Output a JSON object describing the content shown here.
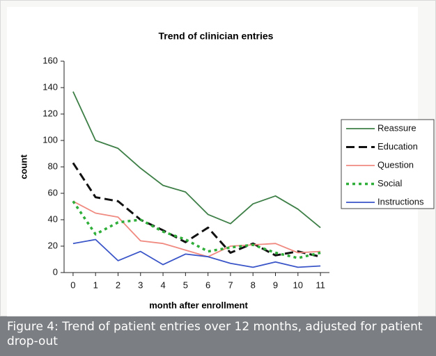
{
  "chart_data": {
    "type": "line",
    "title": "Trend of clinician entries",
    "x_label": "month after enrollment",
    "y_label": "count",
    "x": [
      0,
      1,
      2,
      3,
      4,
      5,
      6,
      7,
      8,
      9,
      10,
      11
    ],
    "xlim": [
      -0.4,
      11.4
    ],
    "xticks": [
      0,
      1,
      2,
      3,
      4,
      5,
      6,
      7,
      8,
      9,
      10,
      11
    ],
    "ylim": [
      0,
      160
    ],
    "yticks": [
      0,
      20,
      40,
      60,
      80,
      100,
      120,
      140,
      160
    ],
    "grid": false,
    "legend": "right",
    "series": [
      {
        "name": "Reassure",
        "color": "#3d7f46",
        "style": "solid",
        "values": [
          137,
          100,
          94,
          79,
          66,
          61,
          44,
          37,
          52,
          58,
          48,
          34
        ]
      },
      {
        "name": "Education",
        "color": "#111111",
        "style": "dashed",
        "values": [
          83,
          57,
          54,
          40,
          32,
          23,
          34,
          15,
          22,
          13,
          16,
          12
        ]
      },
      {
        "name": "Question",
        "color": "#f08a80",
        "style": "solid",
        "values": [
          54,
          45,
          42,
          24,
          22,
          17,
          12,
          20,
          21,
          22,
          15,
          16
        ]
      },
      {
        "name": "Social",
        "color": "#2fae3a",
        "style": "dotted",
        "values": [
          54,
          29,
          38,
          40,
          31,
          25,
          16,
          19,
          21,
          15,
          11,
          15
        ]
      },
      {
        "name": "Instructions",
        "color": "#3a55c8",
        "style": "solid",
        "values": [
          22,
          25,
          9,
          16,
          6,
          14,
          12,
          7,
          4,
          8,
          4,
          5
        ]
      }
    ]
  },
  "caption": "Figure 4: Trend of patient entries over 12 months, adjusted for patient drop-out"
}
